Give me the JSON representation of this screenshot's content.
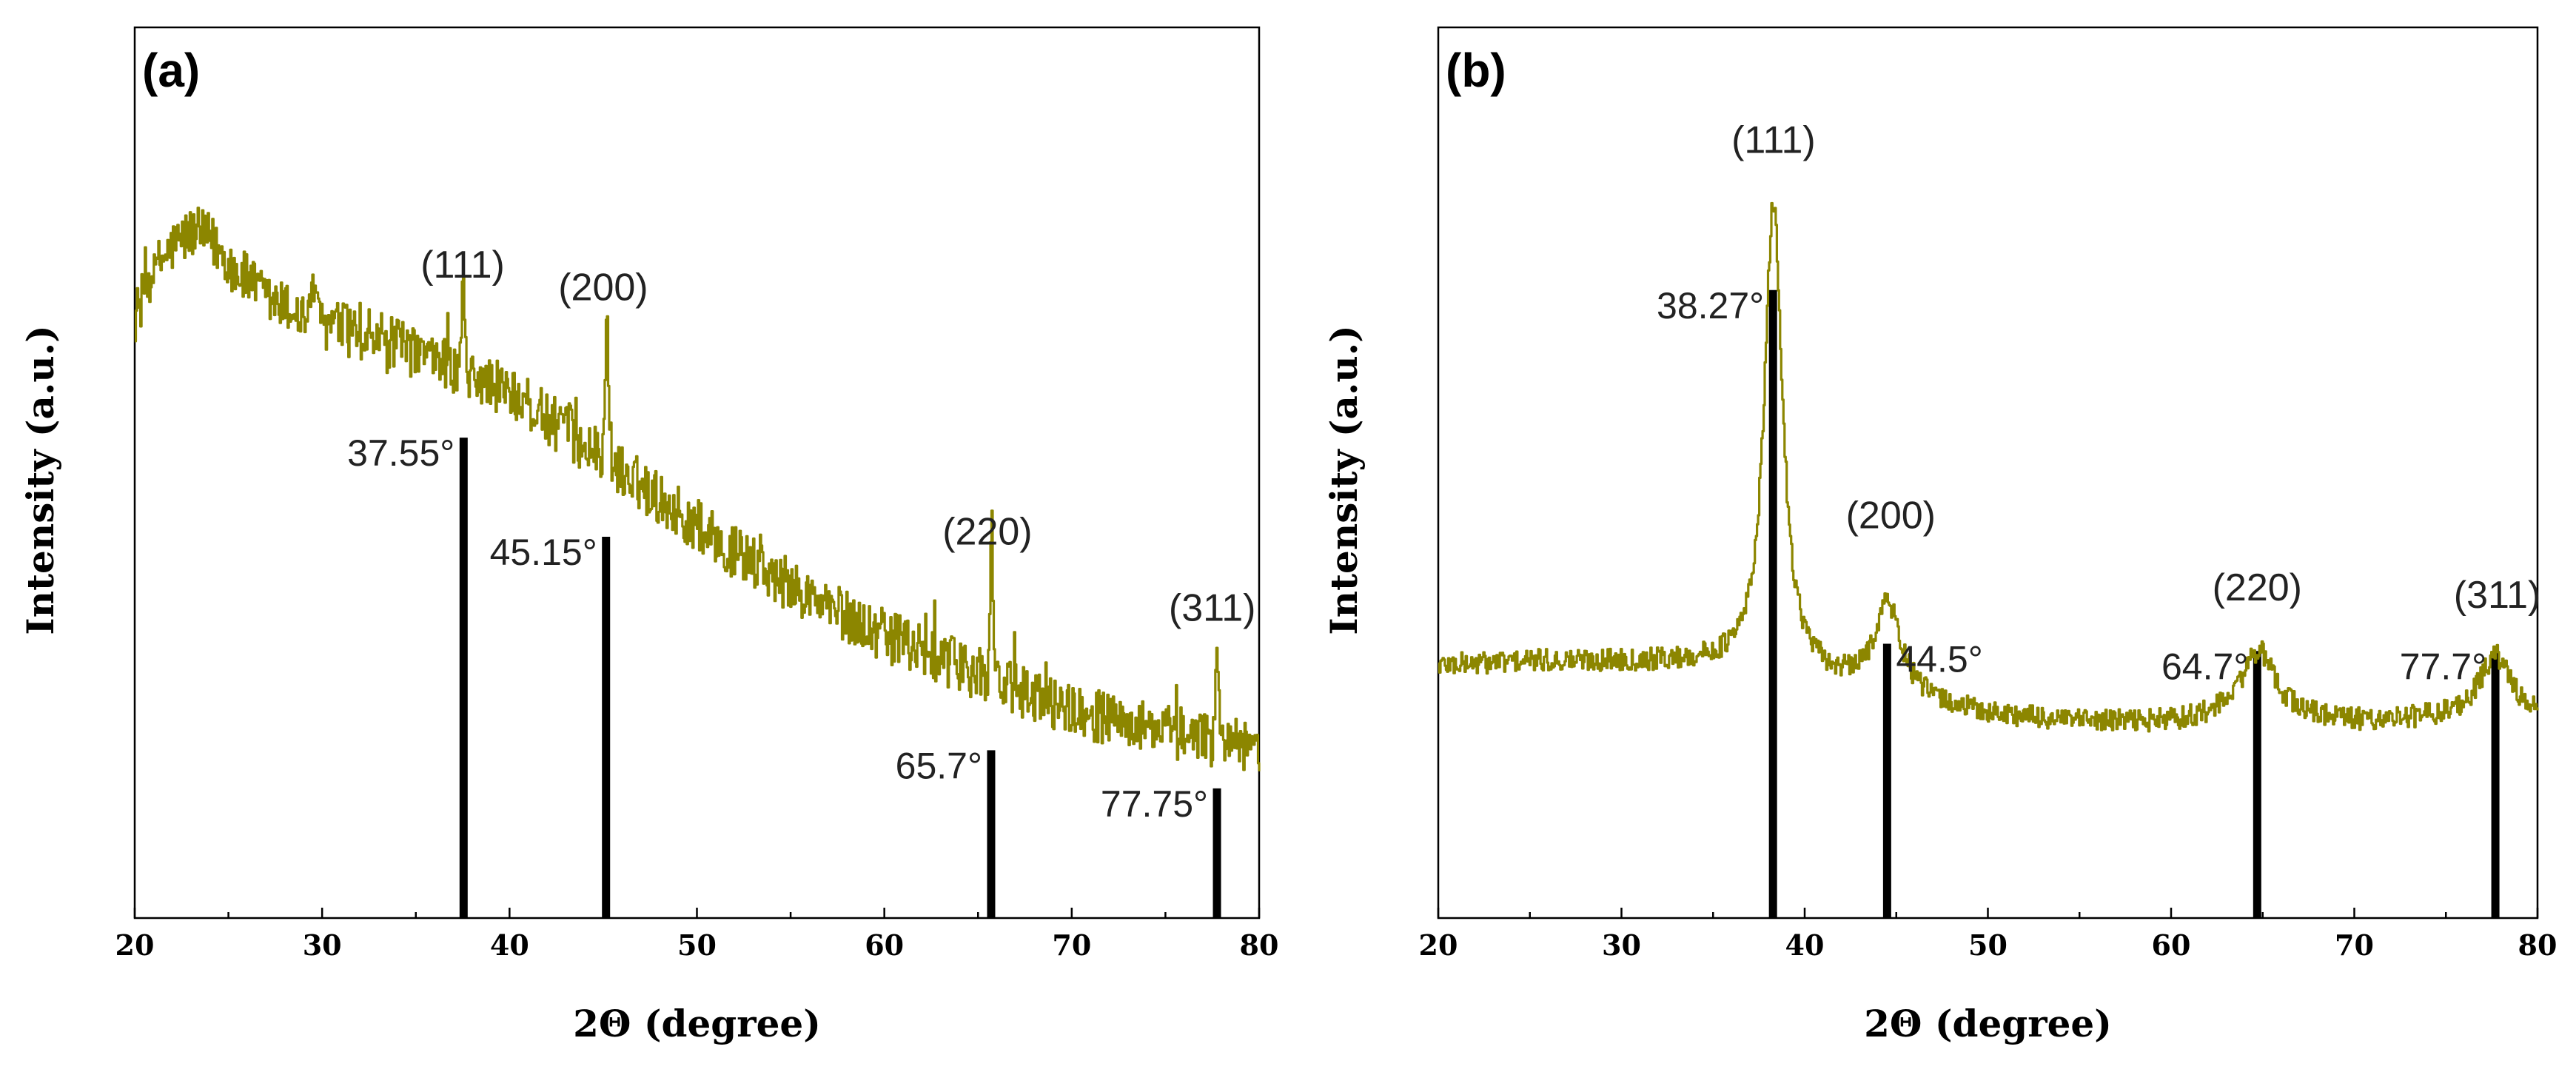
{
  "colors": {
    "trace": "#8c8600",
    "reference": "#000000"
  },
  "chart_data": [
    {
      "type": "line",
      "panel_label": "(a)",
      "xlabel": "2Θ (degree)",
      "ylabel": "Intensity (a.u.)",
      "xlim": [
        20,
        80
      ],
      "ylim": [
        0,
        100
      ],
      "xticks": [
        "20",
        "30",
        "40",
        "50",
        "60",
        "70",
        "80"
      ],
      "y_ticks_shown": false,
      "baseline_profile": {
        "x": [
          20,
          21,
          22,
          23,
          24,
          25,
          27,
          30,
          33,
          36,
          40,
          44,
          48,
          52,
          56,
          60,
          64,
          68,
          72,
          76,
          78,
          80
        ],
        "y": [
          79,
          85,
          88,
          90,
          89,
          86,
          81,
          78,
          76,
          73,
          69,
          62,
          55,
          48,
          42,
          37,
          33,
          29,
          26,
          24,
          23,
          22
        ]
      },
      "noise_amplitude": 3.5,
      "sharp_peaks": [
        {
          "x": 29.5,
          "height": 7
        },
        {
          "x": 37.5,
          "height": 12
        },
        {
          "x": 45.15,
          "height": 21
        },
        {
          "x": 65.7,
          "height": 22
        },
        {
          "x": 77.75,
          "height": 14
        }
      ],
      "reference_lines": [
        {
          "x": 37.55,
          "top": 63,
          "label": "37.55°",
          "side": "left"
        },
        {
          "x": 45.15,
          "top": 50,
          "label": "45.15°",
          "side": "left"
        },
        {
          "x": 65.7,
          "top": 22,
          "label": "65.7°",
          "side": "left"
        },
        {
          "x": 77.75,
          "top": 17,
          "label": "77.75°",
          "side": "left"
        }
      ],
      "peak_labels": [
        {
          "x": 37.5,
          "y": 84,
          "text": "(111)"
        },
        {
          "x": 45.0,
          "y": 81,
          "text": "(200)"
        },
        {
          "x": 65.5,
          "y": 49,
          "text": "(220)"
        },
        {
          "x": 77.5,
          "y": 39,
          "text": "(311)"
        }
      ]
    },
    {
      "type": "line",
      "panel_label": "(b)",
      "xlabel": "2Θ (degree)",
      "ylabel": "Intensity (a.u.)",
      "xlim": [
        20,
        80
      ],
      "ylim": [
        0,
        100
      ],
      "xticks": [
        "20",
        "30",
        "40",
        "50",
        "60",
        "70",
        "80"
      ],
      "y_ticks_shown": false,
      "background_profile": {
        "x": [
          20,
          25,
          30,
          35,
          40,
          45,
          50,
          55,
          60,
          65,
          70,
          75,
          80
        ],
        "y": [
          35,
          35.5,
          35.5,
          35,
          33,
          30,
          28,
          27,
          27,
          28,
          27,
          27.5,
          27
        ]
      },
      "noise_amplitude": 1.6,
      "peaks": [
        {
          "center": 38.27,
          "height": 65,
          "width": 0.6
        },
        {
          "center": 44.5,
          "height": 13,
          "width": 0.9
        },
        {
          "center": 64.7,
          "height": 9,
          "width": 1.1
        },
        {
          "center": 77.7,
          "height": 9,
          "width": 1.1
        }
      ],
      "reference_lines": [
        {
          "x": 38.27,
          "top": 87,
          "label": "38.27°",
          "side": "left"
        },
        {
          "x": 44.5,
          "top": 38,
          "label": "44.5°",
          "side": "right"
        },
        {
          "x": 64.7,
          "top": 37,
          "label": "64.7°",
          "side": "left"
        },
        {
          "x": 77.7,
          "top": 37,
          "label": "77.7°",
          "side": "left"
        }
      ],
      "peak_labels": [
        {
          "x": 38.3,
          "y": 106,
          "text": "(111)"
        },
        {
          "x": 44.7,
          "y": 54,
          "text": "(200)"
        },
        {
          "x": 64.7,
          "y": 44,
          "text": "(220)"
        },
        {
          "x": 77.8,
          "y": 43,
          "text": "(311)"
        }
      ]
    }
  ]
}
